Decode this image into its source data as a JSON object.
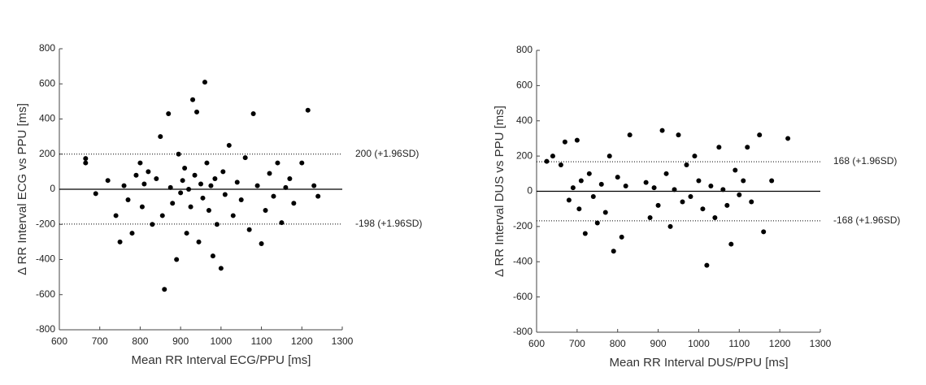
{
  "chart_data": [
    {
      "type": "scatter",
      "xlabel": "Mean RR Interval ECG/PPU [ms]",
      "ylabel": "Δ RR Interval ECG vs PPU [ms]",
      "color": "#000000",
      "x": [
        665,
        665,
        690,
        720,
        740,
        750,
        760,
        770,
        780,
        790,
        800,
        805,
        810,
        820,
        830,
        840,
        850,
        855,
        860,
        870,
        875,
        880,
        890,
        895,
        900,
        905,
        910,
        915,
        920,
        925,
        930,
        935,
        940,
        945,
        950,
        955,
        960,
        965,
        970,
        975,
        980,
        985,
        990,
        1000,
        1005,
        1010,
        1020,
        1030,
        1040,
        1050,
        1060,
        1070,
        1080,
        1090,
        1100,
        1110,
        1120,
        1130,
        1140,
        1150,
        1160,
        1170,
        1180,
        1200,
        1215,
        1230,
        1240
      ],
      "y": [
        175,
        150,
        -25,
        50,
        -150,
        -300,
        20,
        -60,
        -250,
        80,
        150,
        -100,
        30,
        100,
        -200,
        60,
        300,
        -150,
        -570,
        430,
        10,
        -80,
        -400,
        200,
        -20,
        50,
        120,
        -250,
        0,
        -100,
        510,
        80,
        440,
        -300,
        30,
        -50,
        610,
        150,
        -120,
        20,
        -380,
        60,
        -200,
        -450,
        100,
        -30,
        250,
        -150,
        40,
        -60,
        180,
        -230,
        430,
        20,
        -310,
        -120,
        90,
        -40,
        150,
        -190,
        10,
        60,
        -80,
        150,
        450,
        20,
        -40
      ],
      "xlim": [
        600,
        1300
      ],
      "xticks": [
        600,
        700,
        800,
        900,
        1000,
        1100,
        1200,
        1300
      ],
      "ylim": [
        -800,
        800
      ],
      "yticks": [
        -800,
        -600,
        -400,
        -200,
        0,
        200,
        400,
        600,
        800
      ],
      "reference_lines": [
        {
          "value": 200,
          "label": "200 (+1.96SD)",
          "style": "dotted"
        },
        {
          "value": 0,
          "style": "solid"
        },
        {
          "value": -198,
          "label": "-198 (+1.96SD)",
          "style": "dotted"
        }
      ]
    },
    {
      "type": "scatter",
      "xlabel": "Mean RR Interval DUS/PPU [ms]",
      "ylabel": "Δ RR Interval DUS vs PPU [ms]",
      "color": "#000000",
      "x": [
        625,
        640,
        660,
        670,
        680,
        690,
        700,
        705,
        710,
        720,
        730,
        740,
        750,
        760,
        770,
        780,
        790,
        800,
        810,
        820,
        830,
        870,
        880,
        890,
        900,
        910,
        920,
        930,
        940,
        950,
        960,
        970,
        980,
        990,
        1000,
        1010,
        1020,
        1030,
        1040,
        1050,
        1060,
        1070,
        1080,
        1090,
        1100,
        1110,
        1120,
        1130,
        1150,
        1160,
        1180,
        1220
      ],
      "y": [
        170,
        200,
        150,
        280,
        -50,
        20,
        290,
        -100,
        60,
        -240,
        100,
        -30,
        -180,
        40,
        -120,
        200,
        -340,
        80,
        -260,
        30,
        320,
        50,
        -150,
        20,
        -80,
        345,
        100,
        -200,
        10,
        320,
        -60,
        150,
        -30,
        200,
        60,
        -100,
        -420,
        30,
        -150,
        250,
        10,
        -80,
        -300,
        120,
        -20,
        60,
        250,
        -60,
        320,
        -230,
        60,
        300
      ],
      "xlim": [
        600,
        1300
      ],
      "xticks": [
        600,
        700,
        800,
        900,
        1000,
        1100,
        1200,
        1300
      ],
      "ylim": [
        -800,
        800
      ],
      "yticks": [
        -800,
        -600,
        -400,
        -200,
        0,
        200,
        400,
        600,
        800
      ],
      "reference_lines": [
        {
          "value": 168,
          "label": "168 (+1.96SD)",
          "style": "dotted"
        },
        {
          "value": 0,
          "style": "solid"
        },
        {
          "value": -168,
          "label": "-168 (+1.96SD)",
          "style": "dotted"
        }
      ]
    }
  ]
}
